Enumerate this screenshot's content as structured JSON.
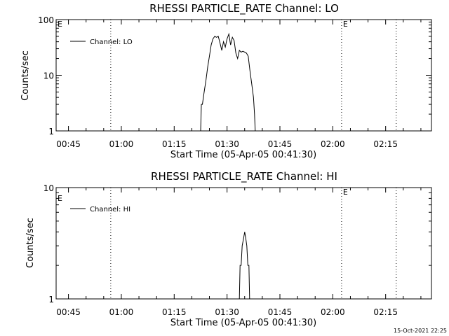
{
  "timestamp": "15-Oct-2021 22:25",
  "chart_data": [
    {
      "type": "line",
      "title": "RHESSI PARTICLE_RATE Channel: LO",
      "xlabel": "Start Time (05-Apr-05 00:41:30)",
      "ylabel": "Counts/sec",
      "yscale": "log",
      "ylim": [
        1,
        100
      ],
      "xlim_min": [
        41.5,
        148
      ],
      "x_units": "minutes since 00:00 UT",
      "x_ticks": [
        {
          "value": 45,
          "label": "00:45"
        },
        {
          "value": 60,
          "label": "01:00"
        },
        {
          "value": 75,
          "label": "01:15"
        },
        {
          "value": 90,
          "label": "01:30"
        },
        {
          "value": 105,
          "label": "01:45"
        },
        {
          "value": 120,
          "label": "02:00"
        },
        {
          "value": 135,
          "label": "02:15"
        }
      ],
      "y_ticks": [
        {
          "value": 1,
          "label": "1"
        },
        {
          "value": 10,
          "label": "10"
        },
        {
          "value": 100,
          "label": "100"
        }
      ],
      "legend": {
        "label": "Channel: LO",
        "position": "top-left"
      },
      "markers": [
        {
          "x": 57,
          "flag": ""
        },
        {
          "x": 122.5,
          "flag": "E"
        },
        {
          "x": 138,
          "flag": ""
        }
      ],
      "left_flag": "E",
      "series": [
        {
          "name": "Channel: LO",
          "points": [
            [
              82.5,
              1
            ],
            [
              82.7,
              3
            ],
            [
              83.0,
              3
            ],
            [
              83.5,
              5
            ],
            [
              84.0,
              8
            ],
            [
              84.5,
              14
            ],
            [
              85.0,
              22
            ],
            [
              85.5,
              35
            ],
            [
              86.0,
              45
            ],
            [
              86.5,
              50
            ],
            [
              87.0,
              48
            ],
            [
              87.5,
              50
            ],
            [
              88.0,
              38
            ],
            [
              88.5,
              28
            ],
            [
              89.0,
              40
            ],
            [
              89.5,
              32
            ],
            [
              90.0,
              45
            ],
            [
              90.5,
              55
            ],
            [
              91.0,
              35
            ],
            [
              91.5,
              48
            ],
            [
              92.0,
              42
            ],
            [
              92.5,
              25
            ],
            [
              93.0,
              20
            ],
            [
              93.5,
              28
            ],
            [
              94.0,
              26
            ],
            [
              94.5,
              27
            ],
            [
              95.0,
              26
            ],
            [
              95.5,
              25
            ],
            [
              96.0,
              22
            ],
            [
              96.5,
              12
            ],
            [
              97.0,
              7
            ],
            [
              97.5,
              4
            ],
            [
              97.8,
              2
            ],
            [
              98.0,
              1
            ]
          ]
        }
      ]
    },
    {
      "type": "line",
      "title": "RHESSI PARTICLE_RATE Channel: HI",
      "xlabel": "Start Time (05-Apr-05 00:41:30)",
      "ylabel": "Counts/sec",
      "yscale": "log",
      "ylim": [
        1,
        10
      ],
      "xlim_min": [
        41.5,
        148
      ],
      "x_units": "minutes since 00:00 UT",
      "x_ticks": [
        {
          "value": 45,
          "label": "00:45"
        },
        {
          "value": 60,
          "label": "01:00"
        },
        {
          "value": 75,
          "label": "01:15"
        },
        {
          "value": 90,
          "label": "01:30"
        },
        {
          "value": 105,
          "label": "01:45"
        },
        {
          "value": 120,
          "label": "02:00"
        },
        {
          "value": 135,
          "label": "02:15"
        }
      ],
      "y_ticks": [
        {
          "value": 1,
          "label": "1"
        },
        {
          "value": 10,
          "label": "10"
        }
      ],
      "legend": {
        "label": "Channel: HI",
        "position": "top-left"
      },
      "markers": [
        {
          "x": 57,
          "flag": ""
        },
        {
          "x": 122.5,
          "flag": "E"
        },
        {
          "x": 138,
          "flag": ""
        }
      ],
      "left_flag": "E",
      "series": [
        {
          "name": "Channel: HI",
          "points": [
            [
              93.5,
              1
            ],
            [
              93.7,
              2
            ],
            [
              94.0,
              2
            ],
            [
              94.3,
              3
            ],
            [
              94.7,
              3.5
            ],
            [
              95.0,
              4
            ],
            [
              95.3,
              3.5
            ],
            [
              95.6,
              3
            ],
            [
              95.9,
              2
            ],
            [
              96.2,
              2
            ],
            [
              96.4,
              1
            ]
          ]
        }
      ]
    }
  ]
}
